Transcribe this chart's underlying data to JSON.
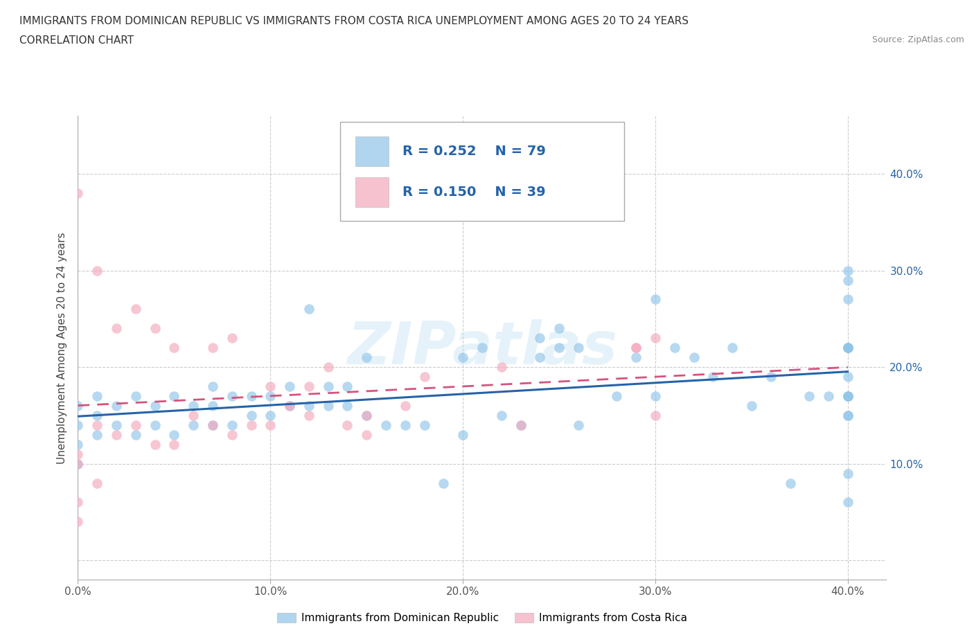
{
  "title_line1": "IMMIGRANTS FROM DOMINICAN REPUBLIC VS IMMIGRANTS FROM COSTA RICA UNEMPLOYMENT AMONG AGES 20 TO 24 YEARS",
  "title_line2": "CORRELATION CHART",
  "source": "Source: ZipAtlas.com",
  "ylabel": "Unemployment Among Ages 20 to 24 years",
  "xlim": [
    0.0,
    0.42
  ],
  "ylim": [
    -0.02,
    0.46
  ],
  "xticks": [
    0.0,
    0.1,
    0.2,
    0.3,
    0.4
  ],
  "yticks": [
    0.0,
    0.1,
    0.2,
    0.3,
    0.4
  ],
  "xticklabels": [
    "0.0%",
    "10.0%",
    "20.0%",
    "30.0%",
    "40.0%"
  ],
  "right_yticklabels": [
    "10.0%",
    "20.0%",
    "30.0%",
    "40.0%"
  ],
  "grid_color": "#cccccc",
  "background_color": "#ffffff",
  "watermark": "ZIPatlas",
  "legend_R1": "R = 0.252",
  "legend_N1": "N = 79",
  "legend_R2": "R = 0.150",
  "legend_N2": "N = 39",
  "color_blue": "#90c4e8",
  "color_pink": "#f4a8bc",
  "color_blue_line": "#2563a8",
  "color_pink_line": "#d4547a",
  "tick_label_color": "#2563a8",
  "legend_label1": "Immigrants from Dominican Republic",
  "legend_label2": "Immigrants from Costa Rica",
  "blue_x": [
    0.0,
    0.0,
    0.0,
    0.0,
    0.01,
    0.01,
    0.01,
    0.02,
    0.02,
    0.03,
    0.03,
    0.04,
    0.04,
    0.05,
    0.05,
    0.06,
    0.06,
    0.07,
    0.07,
    0.07,
    0.08,
    0.08,
    0.09,
    0.09,
    0.1,
    0.1,
    0.11,
    0.11,
    0.12,
    0.12,
    0.13,
    0.13,
    0.14,
    0.14,
    0.15,
    0.15,
    0.16,
    0.17,
    0.18,
    0.19,
    0.2,
    0.2,
    0.21,
    0.22,
    0.23,
    0.24,
    0.24,
    0.25,
    0.25,
    0.26,
    0.26,
    0.28,
    0.29,
    0.3,
    0.3,
    0.31,
    0.32,
    0.33,
    0.34,
    0.35,
    0.36,
    0.37,
    0.38,
    0.39,
    0.4,
    0.4,
    0.4,
    0.4,
    0.4,
    0.4,
    0.4,
    0.4,
    0.4,
    0.4,
    0.4,
    0.4,
    0.4,
    0.4,
    0.4
  ],
  "blue_y": [
    0.1,
    0.12,
    0.14,
    0.16,
    0.13,
    0.15,
    0.17,
    0.14,
    0.16,
    0.13,
    0.17,
    0.14,
    0.16,
    0.13,
    0.17,
    0.14,
    0.16,
    0.14,
    0.16,
    0.18,
    0.14,
    0.17,
    0.15,
    0.17,
    0.15,
    0.17,
    0.16,
    0.18,
    0.16,
    0.26,
    0.16,
    0.18,
    0.16,
    0.18,
    0.15,
    0.21,
    0.14,
    0.14,
    0.14,
    0.08,
    0.13,
    0.21,
    0.22,
    0.15,
    0.14,
    0.21,
    0.23,
    0.22,
    0.24,
    0.22,
    0.14,
    0.17,
    0.21,
    0.17,
    0.27,
    0.22,
    0.21,
    0.19,
    0.22,
    0.16,
    0.19,
    0.08,
    0.17,
    0.17,
    0.06,
    0.09,
    0.15,
    0.17,
    0.19,
    0.22,
    0.17,
    0.22,
    0.22,
    0.17,
    0.15,
    0.29,
    0.3,
    0.27,
    0.22
  ],
  "pink_x": [
    0.0,
    0.0,
    0.0,
    0.0,
    0.0,
    0.01,
    0.01,
    0.01,
    0.02,
    0.02,
    0.03,
    0.03,
    0.04,
    0.04,
    0.05,
    0.05,
    0.06,
    0.07,
    0.07,
    0.08,
    0.08,
    0.09,
    0.1,
    0.1,
    0.11,
    0.12,
    0.12,
    0.13,
    0.14,
    0.15,
    0.15,
    0.17,
    0.18,
    0.22,
    0.23,
    0.29,
    0.29,
    0.3,
    0.3
  ],
  "pink_y": [
    0.04,
    0.06,
    0.1,
    0.11,
    0.38,
    0.08,
    0.14,
    0.3,
    0.13,
    0.24,
    0.14,
    0.26,
    0.12,
    0.24,
    0.12,
    0.22,
    0.15,
    0.14,
    0.22,
    0.13,
    0.23,
    0.14,
    0.14,
    0.18,
    0.16,
    0.15,
    0.18,
    0.2,
    0.14,
    0.13,
    0.15,
    0.16,
    0.19,
    0.2,
    0.14,
    0.22,
    0.22,
    0.23,
    0.15
  ]
}
